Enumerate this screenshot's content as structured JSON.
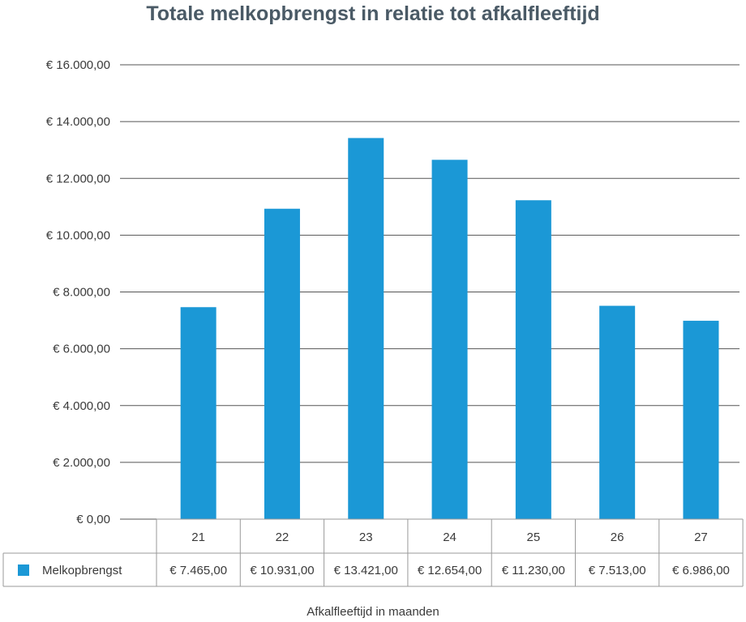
{
  "chart_data": {
    "type": "bar",
    "title": "Totale melkopbrengst in relatie tot afkalfleeftijd",
    "xlabel": "Afkalfleeftijd in maanden",
    "ylabel": "",
    "categories": [
      "21",
      "22",
      "23",
      "24",
      "25",
      "26",
      "27"
    ],
    "series": [
      {
        "name": "Melkopbrengst",
        "values": [
          7465,
          10931,
          13421,
          12654,
          11230,
          7513,
          6986
        ],
        "value_labels": [
          "€ 7.465,00",
          "€ 10.931,00",
          "€ 13.421,00",
          "€ 12.654,00",
          "€ 11.230,00",
          "€ 7.513,00",
          "€ 6.986,00"
        ],
        "color": "#1b98d6"
      }
    ],
    "ylim": [
      0,
      16000
    ],
    "yticks": [
      0,
      2000,
      4000,
      6000,
      8000,
      10000,
      12000,
      14000,
      16000
    ],
    "ytick_labels": [
      "€ 0,00",
      "€ 2.000,00",
      "€ 4.000,00",
      "€ 6.000,00",
      "€ 8.000,00",
      "€ 10.000,00",
      "€ 12.000,00",
      "€ 14.000,00",
      "€ 16.000,00"
    ],
    "grid": true,
    "legend": "data-table",
    "colors": {
      "bar": "#1b98d6",
      "grid": "#555555",
      "table_border": "#9a9a9a",
      "title": "#4a5a66"
    }
  }
}
